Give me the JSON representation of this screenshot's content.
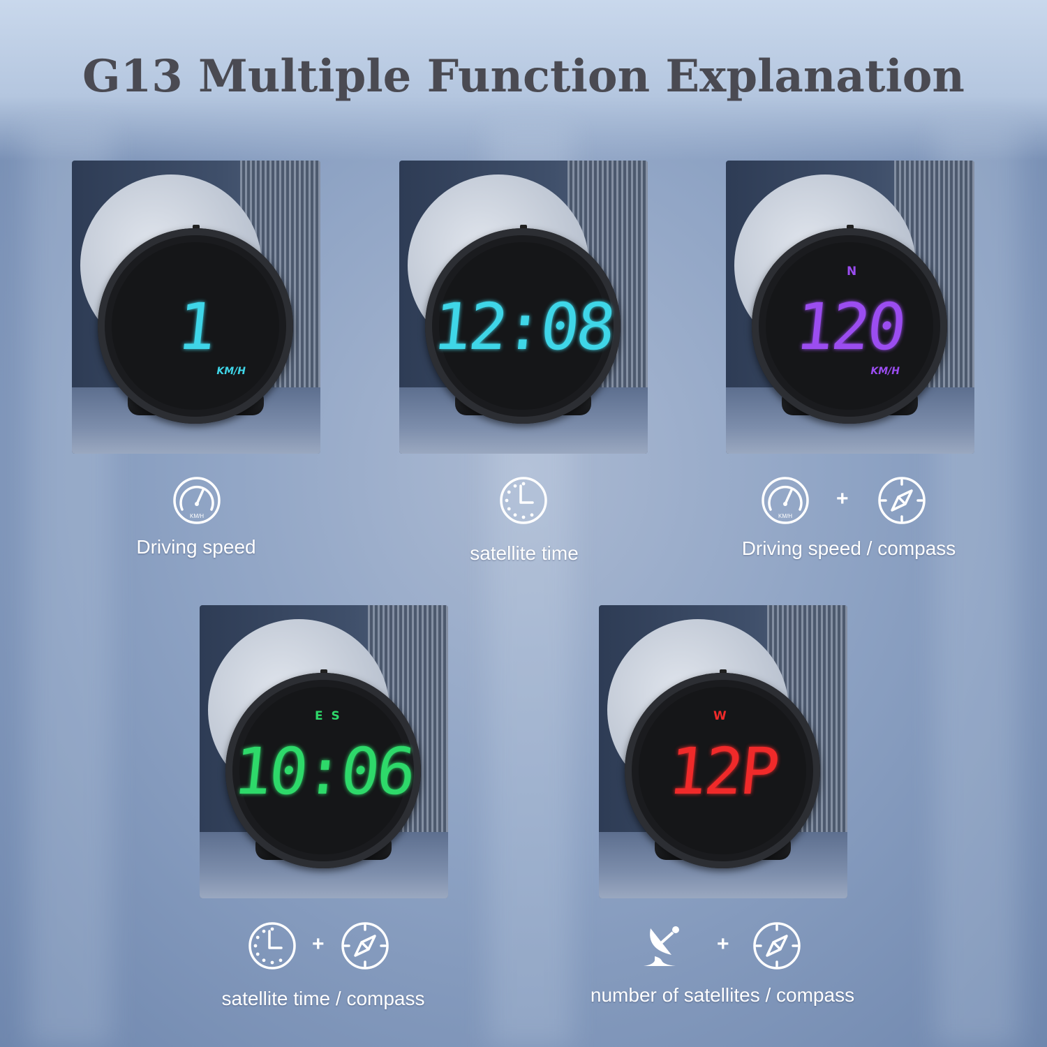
{
  "title": "G13 Multiple Function Explanation",
  "cards": [
    {
      "display": "1",
      "top_indicator": "",
      "unit": "KM/H",
      "color": "#3fd6e8",
      "label": "Driving speed",
      "icons": [
        "speedometer-icon"
      ]
    },
    {
      "display": "12:08",
      "top_indicator": "",
      "unit": "",
      "color": "#3fd6e8",
      "label": "satellite time",
      "icons": [
        "clock-icon"
      ]
    },
    {
      "display": "120",
      "top_indicator": "N",
      "unit": "KM/H",
      "color": "#9b4df0",
      "label": "Driving speed / compass",
      "icons": [
        "speedometer-icon",
        "compass-icon"
      ]
    },
    {
      "display": "10:06",
      "top_indicator": "E  S",
      "unit": "",
      "color": "#2ed96a",
      "label": "satellite time / compass",
      "icons": [
        "clock-icon",
        "compass-icon"
      ]
    },
    {
      "display": "12P",
      "top_indicator": "W",
      "unit": "",
      "color": "#f02a2a",
      "label": "number of satellites / compass",
      "icons": [
        "satellite-dish-icon",
        "compass-icon"
      ]
    }
  ],
  "plus_sign": "+",
  "speedometer_unit": "KM/H"
}
